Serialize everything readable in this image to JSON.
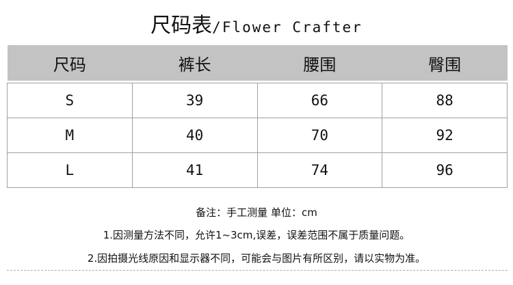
{
  "title": {
    "zh": "尺码表",
    "en": "/Flower Crafter"
  },
  "table": {
    "headers": [
      "尺码",
      "裤长",
      "腰围",
      "臀围"
    ],
    "rows": [
      [
        "S",
        "39",
        "66",
        "88"
      ],
      [
        "M",
        "40",
        "70",
        "92"
      ],
      [
        "L",
        "41",
        "74",
        "96"
      ]
    ],
    "header_bg": "#c3c3c3"
  },
  "notes": [
    "备注：手工测量 单位：cm",
    "1.因测量方法不同，允许1~3cm,误差，误差范围不属于质量问题。",
    "2.因拍摄光线原因和显示器不同，可能会与图片有所区别，请以实物为准。"
  ]
}
